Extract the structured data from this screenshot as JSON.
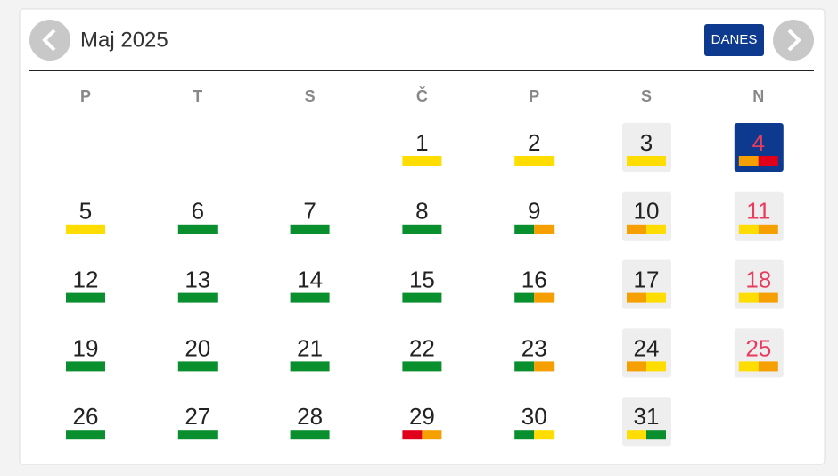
{
  "header": {
    "title": "Maj 2025",
    "today_button": "DANES"
  },
  "weekdays": [
    "P",
    "T",
    "S",
    "Č",
    "P",
    "S",
    "N"
  ],
  "colors": {
    "yellow": "#ffdd00",
    "green": "#0a8f2f",
    "orange": "#f5a000",
    "red": "#e0001b"
  },
  "weeks": [
    [
      null,
      null,
      null,
      {
        "label": "1",
        "bars": [
          "yellow"
        ]
      },
      {
        "label": "2",
        "bars": [
          "yellow"
        ]
      },
      {
        "label": "3",
        "bars": [
          "yellow"
        ]
      },
      {
        "label": "4",
        "bars": [
          "orange",
          "red"
        ],
        "today": true
      }
    ],
    [
      {
        "label": "5",
        "bars": [
          "yellow"
        ]
      },
      {
        "label": "6",
        "bars": [
          "green"
        ]
      },
      {
        "label": "7",
        "bars": [
          "green"
        ]
      },
      {
        "label": "8",
        "bars": [
          "green"
        ]
      },
      {
        "label": "9",
        "bars": [
          "green",
          "orange"
        ]
      },
      {
        "label": "10",
        "bars": [
          "orange",
          "yellow"
        ]
      },
      {
        "label": "11",
        "bars": [
          "yellow",
          "orange"
        ]
      }
    ],
    [
      {
        "label": "12",
        "bars": [
          "green"
        ]
      },
      {
        "label": "13",
        "bars": [
          "green"
        ]
      },
      {
        "label": "14",
        "bars": [
          "green"
        ]
      },
      {
        "label": "15",
        "bars": [
          "green"
        ]
      },
      {
        "label": "16",
        "bars": [
          "green",
          "orange"
        ]
      },
      {
        "label": "17",
        "bars": [
          "orange",
          "yellow"
        ]
      },
      {
        "label": "18",
        "bars": [
          "yellow",
          "orange"
        ]
      }
    ],
    [
      {
        "label": "19",
        "bars": [
          "green"
        ]
      },
      {
        "label": "20",
        "bars": [
          "green"
        ]
      },
      {
        "label": "21",
        "bars": [
          "green"
        ]
      },
      {
        "label": "22",
        "bars": [
          "green"
        ]
      },
      {
        "label": "23",
        "bars": [
          "green",
          "orange"
        ]
      },
      {
        "label": "24",
        "bars": [
          "orange",
          "yellow"
        ]
      },
      {
        "label": "25",
        "bars": [
          "yellow",
          "orange"
        ]
      }
    ],
    [
      {
        "label": "26",
        "bars": [
          "green"
        ]
      },
      {
        "label": "27",
        "bars": [
          "green"
        ]
      },
      {
        "label": "28",
        "bars": [
          "green"
        ]
      },
      {
        "label": "29",
        "bars": [
          "red",
          "orange"
        ]
      },
      {
        "label": "30",
        "bars": [
          "green",
          "yellow"
        ]
      },
      {
        "label": "31",
        "bars": [
          "yellow",
          "green"
        ]
      },
      null
    ]
  ]
}
